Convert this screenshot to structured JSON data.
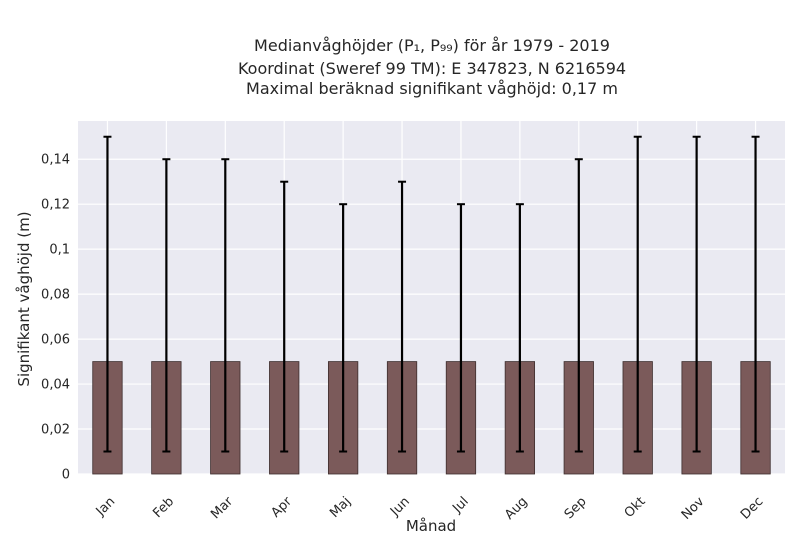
{
  "chart_data": {
    "type": "bar",
    "title": [
      "Medianvåghöjder (P₁, P₉₉) för år 1979 - 2019",
      "Koordinat (Sweref 99 TM): E 347823, N 6216594",
      "Maximal beräknad signifikant våghöjd: 0,17 m"
    ],
    "xlabel": "Månad",
    "ylabel": "Signifikant våghöjd (m)",
    "categories": [
      "Jan",
      "Feb",
      "Mar",
      "Apr",
      "Maj",
      "Jun",
      "Jul",
      "Aug",
      "Sep",
      "Okt",
      "Nov",
      "Dec"
    ],
    "values": [
      0.05,
      0.05,
      0.05,
      0.05,
      0.05,
      0.05,
      0.05,
      0.05,
      0.05,
      0.05,
      0.05,
      0.05
    ],
    "error_low": [
      0.01,
      0.01,
      0.01,
      0.01,
      0.01,
      0.01,
      0.01,
      0.01,
      0.01,
      0.01,
      0.01,
      0.01
    ],
    "error_high": [
      0.15,
      0.14,
      0.14,
      0.13,
      0.12,
      0.13,
      0.12,
      0.12,
      0.14,
      0.15,
      0.15,
      0.15
    ],
    "ylim": [
      0,
      0.157
    ],
    "yticks": [
      0,
      0.02,
      0.04,
      0.06,
      0.08,
      0.1,
      0.12,
      0.14
    ],
    "ytick_labels": [
      "0",
      "0,02",
      "0,04",
      "0,06",
      "0,08",
      "0,1",
      "0,12",
      "0,14"
    ],
    "grid": true,
    "colors": {
      "bar": "#7b5a5a",
      "bar_edge": "#3d2d2d",
      "error": "#000000",
      "plot_bg": "#eaeaf2",
      "grid": "#ffffff"
    }
  }
}
